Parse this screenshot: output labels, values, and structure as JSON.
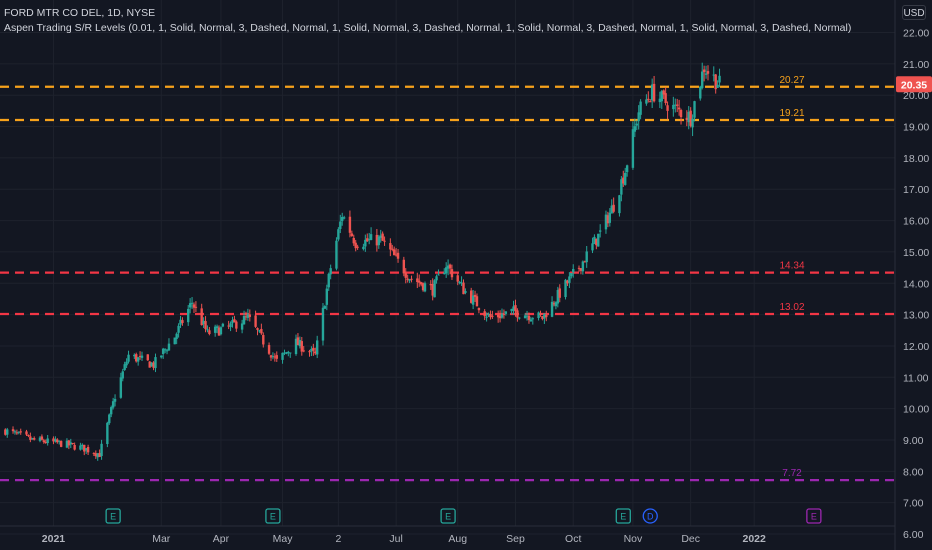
{
  "header": {
    "symbol_line": "FORD MTR CO DEL, 1D, NYSE",
    "indicator_line": "Aspen Trading S/R Levels (0.01, 1, Solid, Normal, 3, Dashed, Normal, 1, Solid, Normal, 3, Dashed, Normal, 1, Solid, Normal, 3, Dashed, Normal, 1, Solid, Normal, 3, Dashed, Normal)",
    "currency": "USD"
  },
  "colors": {
    "background": "#131722",
    "up": "#26a69a",
    "down": "#ef5350",
    "level_orange": "#f7a21b",
    "level_red": "#f23645",
    "level_purple": "#9c27b0",
    "axis_text": "#b2b5be"
  },
  "chart_data": {
    "type": "candlestick",
    "ylim": [
      6,
      22.4
    ],
    "y_ticks": [
      "6.00",
      "7.00",
      "8.00",
      "9.00",
      "10.00",
      "11.00",
      "12.00",
      "13.00",
      "14.00",
      "15.00",
      "16.00",
      "17.00",
      "18.00",
      "19.00",
      "20.00",
      "21.00",
      "22.00"
    ],
    "x_tick_labels": [
      "2021",
      "Mar",
      "Apr",
      "May",
      "2",
      "Jul",
      "Aug",
      "Sep",
      "Oct",
      "Nov",
      "Dec",
      "2022"
    ],
    "x_tick_dates": [
      "2021-01-04",
      "2021-03-01",
      "2021-04-01",
      "2021-05-03",
      "2021-06-01",
      "2021-07-01",
      "2021-08-02",
      "2021-09-01",
      "2021-10-01",
      "2021-11-01",
      "2021-12-01",
      "2022-01-03"
    ],
    "last_price": "20.35",
    "levels": [
      {
        "value": 20.27,
        "label": "20.27",
        "color": "#f7a21b"
      },
      {
        "value": 19.21,
        "label": "19.21",
        "color": "#f7a21b"
      },
      {
        "value": 14.34,
        "label": "14.34",
        "color": "#f23645"
      },
      {
        "value": 13.02,
        "label": "13.02",
        "color": "#f23645"
      },
      {
        "value": 7.72,
        "label": "7.72",
        "color": "#9c27b0"
      }
    ],
    "events": [
      {
        "date": "2021-02-04",
        "label": "E",
        "color": "#26a69a"
      },
      {
        "date": "2021-04-28",
        "label": "E",
        "color": "#26a69a"
      },
      {
        "date": "2021-07-28",
        "label": "E",
        "color": "#26a69a"
      },
      {
        "date": "2021-10-27",
        "label": "E",
        "color": "#26a69a"
      },
      {
        "date": "2021-11-10",
        "label": "D",
        "color": "#2962ff"
      },
      {
        "date": "2022-02-03",
        "label": "E",
        "color": "#9c27b0"
      }
    ],
    "closes": [
      {
        "date": "2020-12-10",
        "close": 9.3
      },
      {
        "date": "2020-12-24",
        "close": 9.0
      },
      {
        "date": "2021-01-07",
        "close": 8.9
      },
      {
        "date": "2021-01-19",
        "close": 8.75
      },
      {
        "date": "2021-01-28",
        "close": 8.55
      },
      {
        "date": "2021-02-05",
        "close": 10.4
      },
      {
        "date": "2021-02-12",
        "close": 11.7
      },
      {
        "date": "2021-02-25",
        "close": 11.4
      },
      {
        "date": "2021-03-08",
        "close": 12.3
      },
      {
        "date": "2021-03-17",
        "close": 13.4
      },
      {
        "date": "2021-03-25",
        "close": 12.4
      },
      {
        "date": "2021-04-05",
        "close": 12.6
      },
      {
        "date": "2021-04-15",
        "close": 12.9
      },
      {
        "date": "2021-04-30",
        "close": 11.5
      },
      {
        "date": "2021-05-10",
        "close": 12.1
      },
      {
        "date": "2021-05-20",
        "close": 11.7
      },
      {
        "date": "2021-05-28",
        "close": 14.5
      },
      {
        "date": "2021-06-03",
        "close": 16.2
      },
      {
        "date": "2021-06-10",
        "close": 15.3
      },
      {
        "date": "2021-06-23",
        "close": 15.4
      },
      {
        "date": "2021-07-08",
        "close": 14.2
      },
      {
        "date": "2021-07-20",
        "close": 13.8
      },
      {
        "date": "2021-07-27",
        "close": 14.6
      },
      {
        "date": "2021-08-05",
        "close": 13.8
      },
      {
        "date": "2021-08-19",
        "close": 12.9
      },
      {
        "date": "2021-08-31",
        "close": 13.1
      },
      {
        "date": "2021-09-15",
        "close": 12.9
      },
      {
        "date": "2021-09-23",
        "close": 13.6
      },
      {
        "date": "2021-10-05",
        "close": 14.6
      },
      {
        "date": "2021-10-15",
        "close": 15.6
      },
      {
        "date": "2021-10-22",
        "close": 16.5
      },
      {
        "date": "2021-10-28",
        "close": 17.6
      },
      {
        "date": "2021-11-04",
        "close": 19.5
      },
      {
        "date": "2021-11-11",
        "close": 20.1
      },
      {
        "date": "2021-11-22",
        "close": 19.6
      },
      {
        "date": "2021-12-01",
        "close": 19.3
      },
      {
        "date": "2021-12-08",
        "close": 20.9
      },
      {
        "date": "2021-12-16",
        "close": 20.35
      }
    ]
  }
}
